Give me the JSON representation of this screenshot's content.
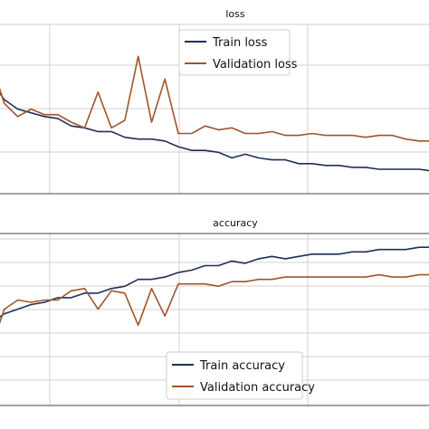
{
  "chart_data": [
    {
      "type": "line",
      "title": "loss",
      "xlabel": "",
      "ylabel": "",
      "grid": true,
      "legend_position": "top-center",
      "x": [
        0,
        1,
        2,
        3,
        4,
        5,
        6,
        7,
        8,
        9,
        10,
        11,
        12,
        13,
        14,
        15,
        16,
        17,
        18,
        19,
        20,
        21,
        22,
        23,
        24,
        25,
        26,
        27,
        28,
        29,
        30,
        31,
        32,
        33
      ],
      "series": [
        {
          "name": "Train loss",
          "color": "#1f2f55",
          "values": [
            0.9,
            0.8,
            0.75,
            0.73,
            0.71,
            0.7,
            0.66,
            0.65,
            0.63,
            0.63,
            0.6,
            0.59,
            0.59,
            0.58,
            0.55,
            0.53,
            0.53,
            0.52,
            0.49,
            0.51,
            0.49,
            0.48,
            0.48,
            0.46,
            0.46,
            0.45,
            0.45,
            0.44,
            0.44,
            0.43,
            0.43,
            0.43,
            0.43,
            0.42
          ]
        },
        {
          "name": "Validation loss",
          "color": "#a0552a",
          "values": [
            1.0,
            0.78,
            0.71,
            0.75,
            0.72,
            0.72,
            0.68,
            0.65,
            0.84,
            0.65,
            0.69,
            1.03,
            0.68,
            0.91,
            0.62,
            0.62,
            0.66,
            0.64,
            0.65,
            0.62,
            0.62,
            0.63,
            0.61,
            0.61,
            0.62,
            0.61,
            0.61,
            0.61,
            0.6,
            0.61,
            0.61,
            0.59,
            0.58,
            0.58
          ]
        }
      ]
    },
    {
      "type": "line",
      "title": "accuracy",
      "xlabel": "",
      "ylabel": "",
      "grid": true,
      "legend_position": "bottom-center",
      "x": [
        0,
        1,
        2,
        3,
        4,
        5,
        6,
        7,
        8,
        9,
        10,
        11,
        12,
        13,
        14,
        15,
        16,
        17,
        18,
        19,
        20,
        21,
        22,
        23,
        24,
        25,
        26,
        27,
        28,
        29,
        30,
        31,
        32,
        33
      ],
      "series": [
        {
          "name": "Train accuracy",
          "color": "#1f2f55",
          "values": [
            0.56,
            0.6,
            0.62,
            0.64,
            0.65,
            0.67,
            0.67,
            0.69,
            0.69,
            0.71,
            0.72,
            0.75,
            0.75,
            0.76,
            0.78,
            0.79,
            0.81,
            0.81,
            0.83,
            0.82,
            0.84,
            0.85,
            0.84,
            0.85,
            0.86,
            0.86,
            0.86,
            0.87,
            0.87,
            0.88,
            0.88,
            0.88,
            0.89,
            0.89
          ]
        },
        {
          "name": "Validation accuracy",
          "color": "#a0552a",
          "values": [
            0.45,
            0.62,
            0.66,
            0.65,
            0.66,
            0.66,
            0.7,
            0.71,
            0.62,
            0.7,
            0.69,
            0.55,
            0.71,
            0.59,
            0.73,
            0.73,
            0.73,
            0.72,
            0.74,
            0.74,
            0.75,
            0.75,
            0.76,
            0.76,
            0.76,
            0.76,
            0.76,
            0.76,
            0.76,
            0.77,
            0.76,
            0.76,
            0.77,
            0.77
          ]
        }
      ]
    }
  ]
}
